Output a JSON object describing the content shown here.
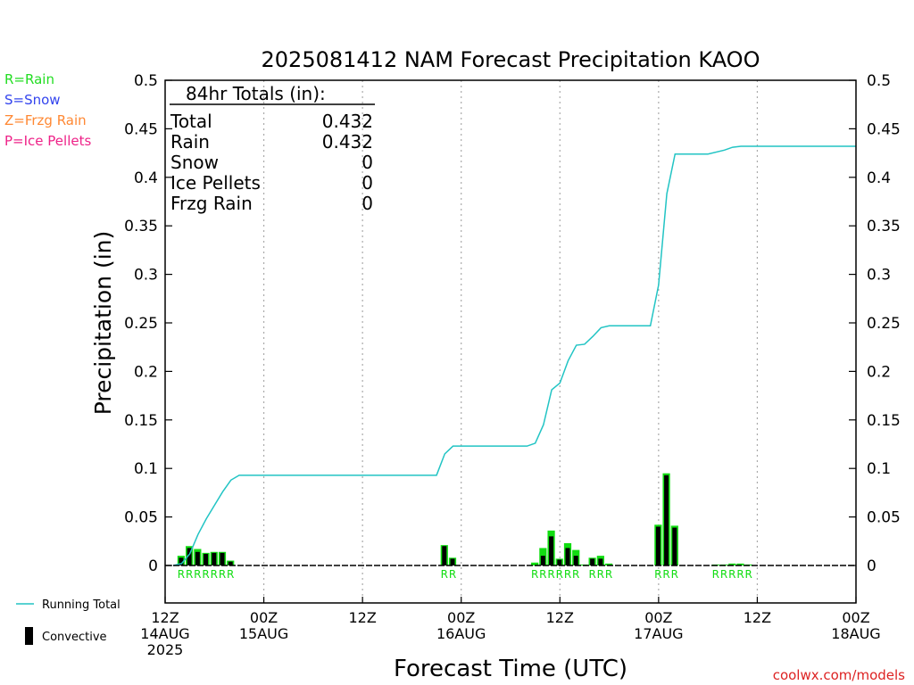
{
  "chart_data": {
    "type": "bar",
    "title": "2025081412 NAM Forecast Precipitation KAOO",
    "xlabel": "Forecast Time (UTC)",
    "ylabel": "Precipitation (in)",
    "ylim": [
      0,
      0.5
    ],
    "xlim_hours": [
      0,
      84
    ],
    "yticks": [
      "0",
      "0.05",
      "0.1",
      "0.15",
      "0.2",
      "0.25",
      "0.3",
      "0.35",
      "0.4",
      "0.45",
      "0.5"
    ],
    "xticks": [
      {
        "h": 0,
        "lines": [
          "12Z",
          "14AUG",
          "2025"
        ]
      },
      {
        "h": 12,
        "lines": [
          "00Z",
          "15AUG"
        ]
      },
      {
        "h": 24,
        "lines": [
          "12Z"
        ]
      },
      {
        "h": 36,
        "lines": [
          "00Z",
          "16AUG"
        ]
      },
      {
        "h": 48,
        "lines": [
          "12Z"
        ]
      },
      {
        "h": 60,
        "lines": [
          "00Z",
          "17AUG"
        ]
      },
      {
        "h": 72,
        "lines": [
          "12Z"
        ]
      },
      {
        "h": 84,
        "lines": [
          "00Z",
          "18AUG"
        ]
      }
    ],
    "grid": true,
    "precip_type_legend": [
      {
        "label": "R=Rain",
        "color": "#22dd22"
      },
      {
        "label": "S=Snow",
        "color": "#3344ee"
      },
      {
        "label": "Z=Frzg Rain",
        "color": "#ff8833"
      },
      {
        "label": "P=Ice Pellets",
        "color": "#ee2288"
      }
    ],
    "totals": {
      "header": "84hr Totals (in):",
      "rows": [
        {
          "label": "Total",
          "value": "0.432"
        },
        {
          "label": "Rain",
          "value": "0.432"
        },
        {
          "label": "Snow",
          "value": "0"
        },
        {
          "label": "Ice Pellets",
          "value": "0"
        },
        {
          "label": "Frzg Rain",
          "value": "0"
        }
      ]
    },
    "series": [
      {
        "name": "Running Total",
        "kind": "line",
        "color": "#22c4c4",
        "points": [
          [
            1,
            0
          ],
          [
            2,
            0.002
          ],
          [
            3,
            0.012
          ],
          [
            4,
            0.032
          ],
          [
            5,
            0.048
          ],
          [
            6,
            0.062
          ],
          [
            7,
            0.076
          ],
          [
            8,
            0.088
          ],
          [
            9,
            0.093
          ],
          [
            12,
            0.093
          ],
          [
            20,
            0.093
          ],
          [
            30,
            0.093
          ],
          [
            33,
            0.093
          ],
          [
            34,
            0.115
          ],
          [
            35,
            0.123
          ],
          [
            36,
            0.123
          ],
          [
            44,
            0.123
          ],
          [
            45,
            0.126
          ],
          [
            46,
            0.145
          ],
          [
            47,
            0.181
          ],
          [
            48,
            0.188
          ],
          [
            49,
            0.211
          ],
          [
            50,
            0.227
          ],
          [
            51,
            0.228
          ],
          [
            52,
            0.236
          ],
          [
            53,
            0.245
          ],
          [
            54,
            0.247
          ],
          [
            55,
            0.247
          ],
          [
            58,
            0.247
          ],
          [
            59,
            0.247
          ],
          [
            60,
            0.289
          ],
          [
            61,
            0.383
          ],
          [
            62,
            0.424
          ],
          [
            65,
            0.424
          ],
          [
            66,
            0.424
          ],
          [
            68,
            0.428
          ],
          [
            69,
            0.431
          ],
          [
            70,
            0.432
          ],
          [
            72,
            0.432
          ],
          [
            84,
            0.432
          ]
        ]
      },
      {
        "name": "Rain",
        "kind": "bar",
        "color": "#11dd11",
        "bars": [
          [
            2,
            0.01
          ],
          [
            3,
            0.02
          ],
          [
            4,
            0.017
          ],
          [
            5,
            0.013
          ],
          [
            6,
            0.014
          ],
          [
            7,
            0.014
          ],
          [
            8,
            0.005
          ],
          [
            34,
            0.021
          ],
          [
            35,
            0.008
          ],
          [
            45,
            0.003
          ],
          [
            46,
            0.018
          ],
          [
            47,
            0.036
          ],
          [
            48,
            0.007
          ],
          [
            49,
            0.023
          ],
          [
            50,
            0.016
          ],
          [
            51,
            0.001
          ],
          [
            52,
            0.008
          ],
          [
            53,
            0.01
          ],
          [
            54,
            0.002
          ],
          [
            60,
            0.042
          ],
          [
            61,
            0.095
          ],
          [
            62,
            0.041
          ],
          [
            67,
            0.001
          ],
          [
            68,
            0.001
          ],
          [
            69,
            0.002
          ],
          [
            70,
            0.002
          ],
          [
            71,
            0.001
          ]
        ]
      },
      {
        "name": "Convective",
        "kind": "bar",
        "color": "#000000",
        "bars": [
          [
            2,
            0.008
          ],
          [
            3,
            0.018
          ],
          [
            4,
            0.014
          ],
          [
            5,
            0.012
          ],
          [
            6,
            0.013
          ],
          [
            7,
            0.013
          ],
          [
            8,
            0.004
          ],
          [
            34,
            0.02
          ],
          [
            35,
            0.007
          ],
          [
            46,
            0.01
          ],
          [
            47,
            0.03
          ],
          [
            48,
            0.006
          ],
          [
            49,
            0.018
          ],
          [
            50,
            0.01
          ],
          [
            52,
            0.007
          ],
          [
            53,
            0.007
          ],
          [
            60,
            0.04
          ],
          [
            61,
            0.093
          ],
          [
            62,
            0.039
          ]
        ]
      }
    ],
    "ptype_markers": [
      {
        "h": 2,
        "label": "R"
      },
      {
        "h": 3,
        "label": "R"
      },
      {
        "h": 4,
        "label": "R"
      },
      {
        "h": 5,
        "label": "R"
      },
      {
        "h": 6,
        "label": "R"
      },
      {
        "h": 7,
        "label": "R"
      },
      {
        "h": 8,
        "label": "R"
      },
      {
        "h": 34,
        "label": "R"
      },
      {
        "h": 35,
        "label": "R"
      },
      {
        "h": 45,
        "label": "R"
      },
      {
        "h": 46,
        "label": "R"
      },
      {
        "h": 47,
        "label": "R"
      },
      {
        "h": 48,
        "label": "R"
      },
      {
        "h": 49,
        "label": "R"
      },
      {
        "h": 50,
        "label": "R"
      },
      {
        "h": 52,
        "label": "R"
      },
      {
        "h": 53,
        "label": "R"
      },
      {
        "h": 54,
        "label": "R"
      },
      {
        "h": 60,
        "label": "R"
      },
      {
        "h": 61,
        "label": "R"
      },
      {
        "h": 62,
        "label": "R"
      },
      {
        "h": 67,
        "label": "R"
      },
      {
        "h": 68,
        "label": "R"
      },
      {
        "h": 69,
        "label": "R"
      },
      {
        "h": 70,
        "label": "R"
      },
      {
        "h": 71,
        "label": "R"
      }
    ],
    "legend_entries": [
      {
        "label": "Running Total",
        "kind": "line",
        "color": "#22c4c4"
      },
      {
        "label": "Convective",
        "kind": "bar",
        "color": "#000000"
      }
    ],
    "credit": "coolwx.com/models"
  }
}
